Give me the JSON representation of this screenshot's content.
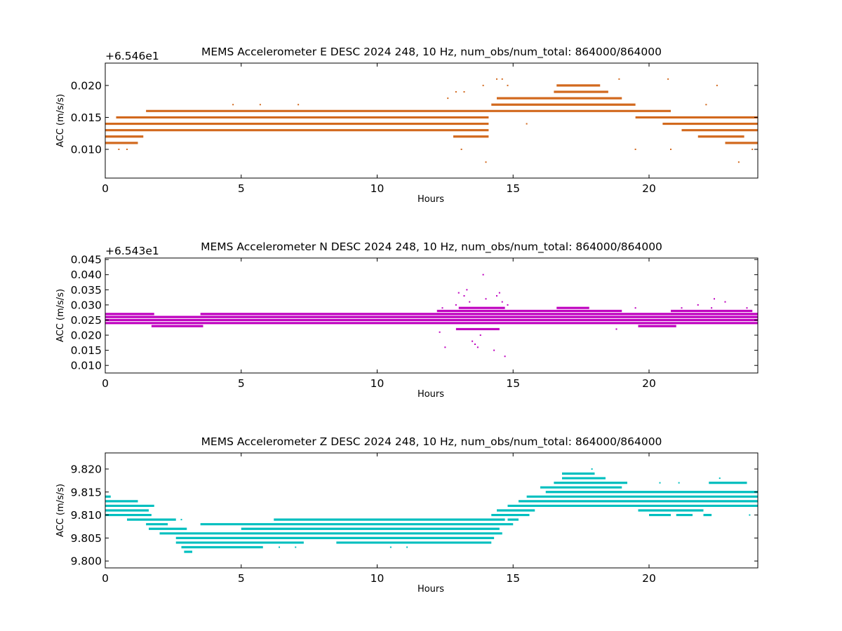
{
  "chart_data": [
    {
      "type": "scatter",
      "title": "MEMS Accelerometer E DESC 2024 248, 10 Hz, num_obs/num_total: 864000/864000",
      "xlabel": "Hours",
      "ylabel": "ACC (m/s/s)",
      "offset_text": "+6.546e1",
      "color": "#d2691e",
      "xlim": [
        0,
        24
      ],
      "ylim": [
        0.0055,
        0.0235
      ],
      "xticks": [
        0,
        5,
        10,
        15,
        20
      ],
      "xtick_labels": [
        "0",
        "5",
        "10",
        "15",
        "20"
      ],
      "yticks": [
        0.01,
        0.015,
        0.02
      ],
      "ytick_labels": [
        "0.010",
        "0.015",
        "0.020"
      ],
      "series": [
        {
          "levels": [
            {
              "y": 0.014,
              "segments": [
                [
                  0,
                  14.1
                ],
                [
                  20.5,
                  24
                ]
              ]
            },
            {
              "y": 0.013,
              "segments": [
                [
                  0,
                  14.1
                ],
                [
                  21.2,
                  24
                ]
              ]
            },
            {
              "y": 0.015,
              "segments": [
                [
                  0.4,
                  14.1
                ],
                [
                  19.5,
                  24
                ]
              ]
            },
            {
              "y": 0.016,
              "segments": [
                [
                  1.5,
                  20.8
                ]
              ]
            },
            {
              "y": 0.012,
              "segments": [
                [
                  0,
                  1.4
                ],
                [
                  12.8,
                  14.1
                ],
                [
                  21.8,
                  23.5
                ]
              ]
            },
            {
              "y": 0.011,
              "segments": [
                [
                  0,
                  1.2
                ],
                [
                  22.8,
                  24
                ]
              ]
            },
            {
              "y": 0.017,
              "segments": [
                [
                  14.2,
                  19.5
                ]
              ]
            },
            {
              "y": 0.018,
              "segments": [
                [
                  14.4,
                  19.0
                ]
              ]
            },
            {
              "y": 0.019,
              "segments": [
                [
                  16.5,
                  18.5
                ]
              ]
            },
            {
              "y": 0.02,
              "segments": [
                [
                  16.6,
                  18.2
                ]
              ]
            }
          ],
          "points": [
            [
              0.5,
              0.01
            ],
            [
              0.8,
              0.01
            ],
            [
              4.7,
              0.017
            ],
            [
              5.7,
              0.017
            ],
            [
              7.1,
              0.017
            ],
            [
              12.6,
              0.018
            ],
            [
              12.9,
              0.019
            ],
            [
              13.2,
              0.019
            ],
            [
              13.1,
              0.01
            ],
            [
              14.0,
              0.008
            ],
            [
              13.9,
              0.02
            ],
            [
              14.4,
              0.021
            ],
            [
              14.6,
              0.021
            ],
            [
              14.8,
              0.02
            ],
            [
              15.5,
              0.014
            ],
            [
              18.9,
              0.021
            ],
            [
              19.5,
              0.01
            ],
            [
              20.7,
              0.021
            ],
            [
              20.8,
              0.01
            ],
            [
              22.1,
              0.017
            ],
            [
              22.5,
              0.02
            ],
            [
              23.3,
              0.008
            ],
            [
              23.8,
              0.01
            ]
          ]
        }
      ]
    },
    {
      "type": "scatter",
      "title": "MEMS Accelerometer N DESC 2024 248, 10 Hz, num_obs/num_total: 864000/864000",
      "xlabel": "Hours",
      "ylabel": "ACC (m/s/s)",
      "offset_text": "+6.543e1",
      "color": "#bf00bf",
      "xlim": [
        0,
        24
      ],
      "ylim": [
        0.0075,
        0.0455
      ],
      "xticks": [
        0,
        5,
        10,
        15,
        20
      ],
      "xtick_labels": [
        "0",
        "5",
        "10",
        "15",
        "20"
      ],
      "yticks": [
        0.01,
        0.015,
        0.02,
        0.025,
        0.03,
        0.035,
        0.04,
        0.045
      ],
      "ytick_labels": [
        "0.010",
        "0.015",
        "0.020",
        "0.025",
        "0.030",
        "0.035",
        "0.040",
        "0.045"
      ],
      "series": [
        {
          "levels": [
            {
              "y": 0.024,
              "segments": [
                [
                  0,
                  24
                ]
              ]
            },
            {
              "y": 0.025,
              "segments": [
                [
                  0,
                  24
                ]
              ]
            },
            {
              "y": 0.026,
              "segments": [
                [
                  0,
                  24
                ]
              ]
            },
            {
              "y": 0.027,
              "segments": [
                [
                  0,
                  1.8
                ],
                [
                  3.5,
                  24
                ]
              ]
            },
            {
              "y": 0.023,
              "segments": [
                [
                  1.7,
                  3.6
                ],
                [
                  19.6,
                  21.0
                ]
              ]
            },
            {
              "y": 0.028,
              "segments": [
                [
                  12.2,
                  19.0
                ],
                [
                  20.8,
                  23.8
                ]
              ]
            },
            {
              "y": 0.029,
              "segments": [
                [
                  16.6,
                  17.8
                ],
                [
                  13.0,
                  14.7
                ]
              ]
            },
            {
              "y": 0.022,
              "segments": [
                [
                  12.9,
                  14.5
                ]
              ]
            }
          ],
          "points": [
            [
              12.4,
              0.029
            ],
            [
              12.3,
              0.021
            ],
            [
              12.5,
              0.016
            ],
            [
              12.9,
              0.03
            ],
            [
              13.0,
              0.034
            ],
            [
              13.2,
              0.033
            ],
            [
              13.3,
              0.035
            ],
            [
              13.4,
              0.031
            ],
            [
              13.5,
              0.018
            ],
            [
              13.6,
              0.017
            ],
            [
              13.7,
              0.016
            ],
            [
              13.8,
              0.02
            ],
            [
              13.9,
              0.04
            ],
            [
              14.0,
              0.032
            ],
            [
              14.4,
              0.033
            ],
            [
              14.5,
              0.034
            ],
            [
              14.6,
              0.031
            ],
            [
              14.3,
              0.015
            ],
            [
              14.7,
              0.013
            ],
            [
              14.8,
              0.03
            ],
            [
              18.8,
              0.022
            ],
            [
              19.5,
              0.029
            ],
            [
              21.2,
              0.029
            ],
            [
              21.8,
              0.03
            ],
            [
              22.3,
              0.029
            ],
            [
              22.4,
              0.032
            ],
            [
              22.8,
              0.031
            ],
            [
              23.6,
              0.029
            ]
          ]
        }
      ]
    },
    {
      "type": "scatter",
      "title": "MEMS Accelerometer Z DESC 2024 248, 10 Hz, num_obs/num_total: 864000/864000",
      "xlabel": "Hours",
      "ylabel": "ACC (m/s/s)",
      "offset_text": "",
      "color": "#00bfbf",
      "xlim": [
        0,
        24
      ],
      "ylim": [
        9.7985,
        9.8235
      ],
      "xticks": [
        0,
        5,
        10,
        15,
        20
      ],
      "xtick_labels": [
        "0",
        "5",
        "10",
        "15",
        "20"
      ],
      "yticks": [
        9.8,
        9.805,
        9.81,
        9.815,
        9.82
      ],
      "ytick_labels": [
        "9.800",
        "9.805",
        "9.810",
        "9.815",
        "9.820"
      ],
      "series": [
        {
          "levels": [
            {
              "y": 9.814,
              "segments": [
                [
                  0,
                  0.2
                ]
              ]
            },
            {
              "y": 9.813,
              "segments": [
                [
                  0,
                  1.2
                ]
              ]
            },
            {
              "y": 9.812,
              "segments": [
                [
                  0,
                  1.8
                ]
              ]
            },
            {
              "y": 9.811,
              "segments": [
                [
                  0,
                  1.6
                ]
              ]
            },
            {
              "y": 9.81,
              "segments": [
                [
                  0,
                  1.7
                ],
                [
                  14.2,
                  15.6
                ]
              ]
            },
            {
              "y": 9.809,
              "segments": [
                [
                  0.8,
                  2.6
                ],
                [
                  6.2,
                  14.7
                ],
                [
                  14.8,
                  15.2
                ]
              ]
            },
            {
              "y": 9.808,
              "segments": [
                [
                  1.5,
                  2.3
                ],
                [
                  3.5,
                  15.0
                ]
              ]
            },
            {
              "y": 9.807,
              "segments": [
                [
                  1.6,
                  3.0
                ],
                [
                  5.0,
                  14.5
                ]
              ]
            },
            {
              "y": 9.806,
              "segments": [
                [
                  2.0,
                  14.6
                ]
              ]
            },
            {
              "y": 9.805,
              "segments": [
                [
                  2.6,
                  14.3
                ]
              ]
            },
            {
              "y": 9.804,
              "segments": [
                [
                  2.6,
                  7.3
                ],
                [
                  8.5,
                  14.2
                ]
              ]
            },
            {
              "y": 9.803,
              "segments": [
                [
                  2.8,
                  5.8
                ]
              ]
            },
            {
              "y": 9.802,
              "segments": [
                [
                  2.9,
                  3.2
                ]
              ]
            },
            {
              "y": 9.811,
              "segments": [
                [
                  14.4,
                  15.8
                ]
              ]
            },
            {
              "y": 9.812,
              "segments": [
                [
                  14.8,
                  24
                ]
              ]
            },
            {
              "y": 9.813,
              "segments": [
                [
                  15.2,
                  24
                ]
              ]
            },
            {
              "y": 9.814,
              "segments": [
                [
                  15.5,
                  24
                ]
              ]
            },
            {
              "y": 9.815,
              "segments": [
                [
                  16.2,
                  24
                ]
              ]
            },
            {
              "y": 9.816,
              "segments": [
                [
                  16.0,
                  19.0
                ]
              ]
            },
            {
              "y": 9.817,
              "segments": [
                [
                  16.5,
                  19.2
                ],
                [
                  22.2,
                  23.6
                ]
              ]
            },
            {
              "y": 9.818,
              "segments": [
                [
                  16.8,
                  18.4
                ]
              ]
            },
            {
              "y": 9.819,
              "segments": [
                [
                  16.8,
                  18.0
                ]
              ]
            },
            {
              "y": 9.811,
              "segments": [
                [
                  19.6,
                  22.0
                ]
              ]
            },
            {
              "y": 9.81,
              "segments": [
                [
                  20.0,
                  20.8
                ],
                [
                  21.0,
                  21.6
                ],
                [
                  22.0,
                  22.3
                ]
              ]
            }
          ],
          "points": [
            [
              3.0,
              9.802
            ],
            [
              6.4,
              9.803
            ],
            [
              7.0,
              9.803
            ],
            [
              8.0,
              9.808
            ],
            [
              9.5,
              9.809
            ],
            [
              10.5,
              9.803
            ],
            [
              11.1,
              9.803
            ],
            [
              17.9,
              9.82
            ],
            [
              20.4,
              9.817
            ],
            [
              21.1,
              9.817
            ],
            [
              22.6,
              9.818
            ],
            [
              23.7,
              9.81
            ],
            [
              2.8,
              9.809
            ],
            [
              3.8,
              9.808
            ]
          ]
        }
      ]
    }
  ]
}
